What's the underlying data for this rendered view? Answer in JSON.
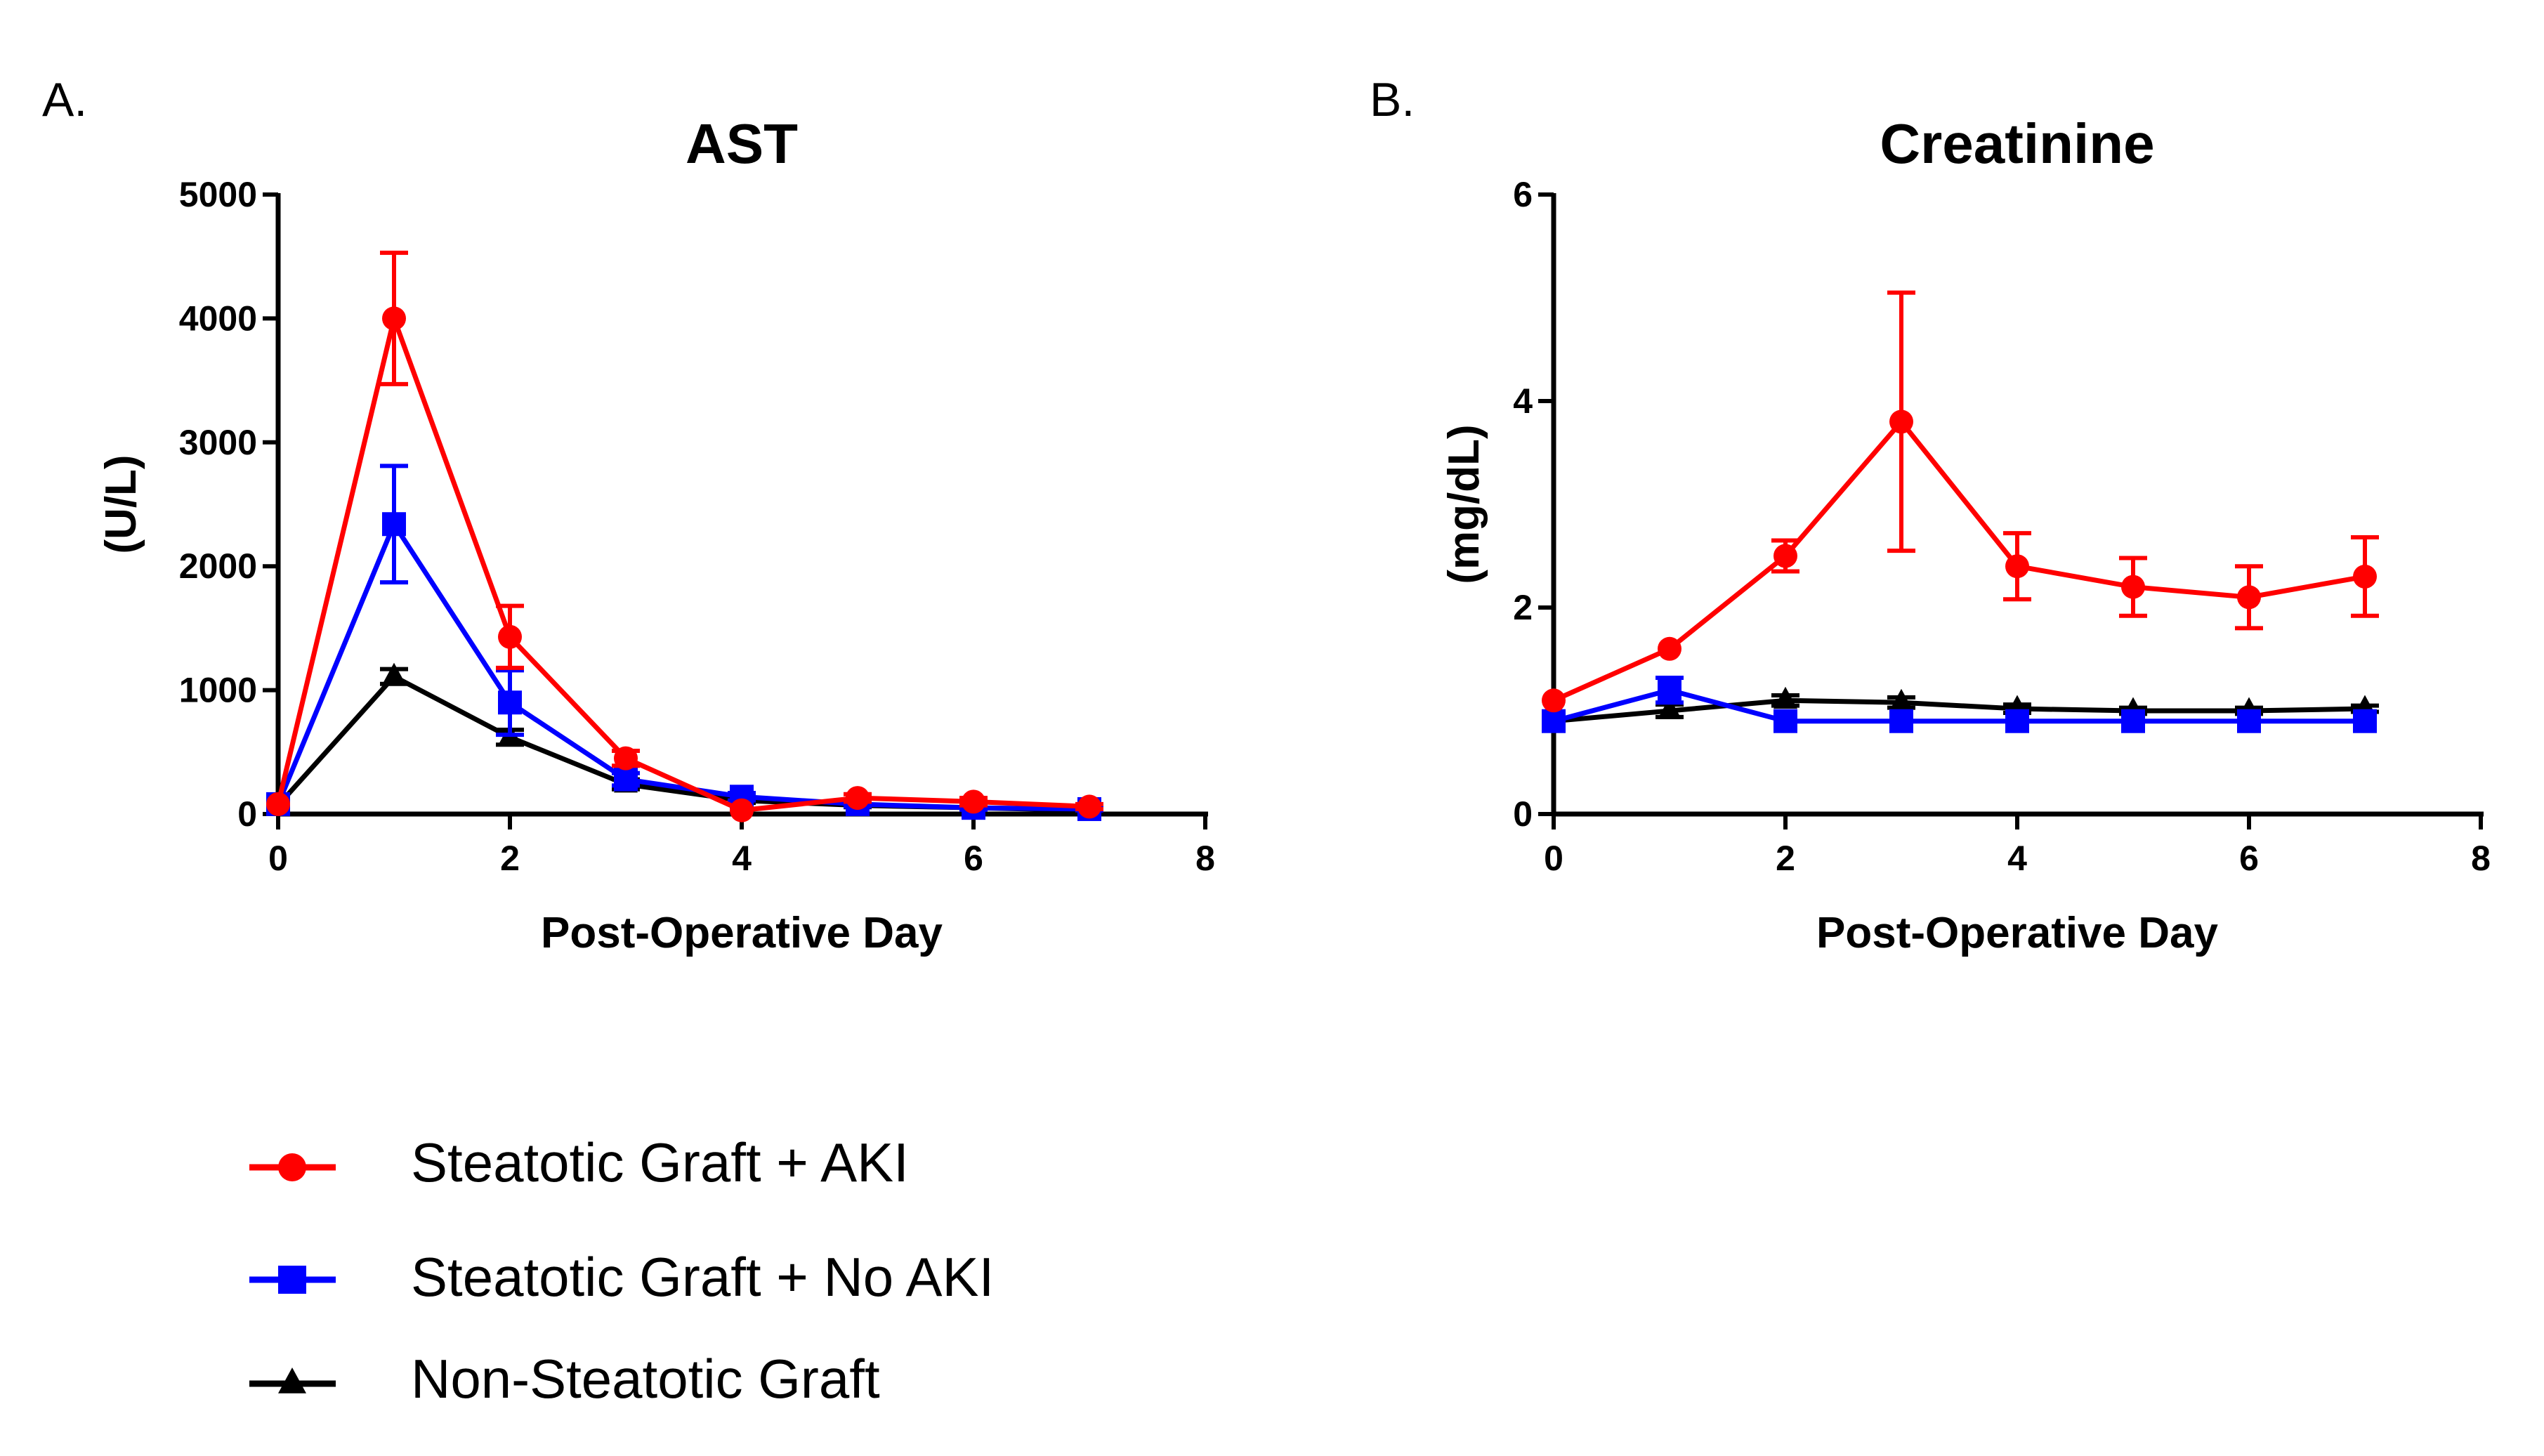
{
  "panels": [
    {
      "letter": "A."
    },
    {
      "letter": "B."
    }
  ],
  "series_style": [
    {
      "name": "Steatotic Graft + AKI",
      "color": "#ff0000",
      "marker": "circle"
    },
    {
      "name": "Steatotic Graft + No AKI",
      "color": "#0000ff",
      "marker": "square"
    },
    {
      "name": "Non-Steatotic Graft",
      "color": "#000000",
      "marker": "triangle"
    }
  ],
  "legend": {
    "items": [
      "Steatotic Graft + AKI",
      "Steatotic Graft + No AKI",
      "Non-Steatotic Graft"
    ]
  },
  "chart_data": [
    {
      "type": "line",
      "title": "AST",
      "xlabel": "Post-Operative Day",
      "ylabel": "(U/L)",
      "xlim": [
        0,
        8
      ],
      "ylim": [
        0,
        5000
      ],
      "xticks": [
        0,
        2,
        4,
        6,
        8
      ],
      "yticks": [
        0,
        1000,
        2000,
        3000,
        4000,
        5000
      ],
      "xtick_labels": [
        "0",
        "2",
        "4",
        "6",
        "8"
      ],
      "ytick_labels": [
        "0",
        "1000",
        "2000",
        "3000",
        "4000",
        "5000"
      ],
      "series": [
        {
          "name": "Steatotic Graft + AKI",
          "x": [
            0,
            1,
            2,
            3,
            4,
            5,
            6,
            7
          ],
          "y": [
            80,
            4000,
            1430,
            450,
            30,
            130,
            100,
            60
          ],
          "err": [
            0,
            530,
            250,
            60,
            0,
            30,
            30,
            20
          ]
        },
        {
          "name": "Steatotic Graft + No AKI",
          "x": [
            0,
            1,
            2,
            3,
            4,
            5,
            6,
            7
          ],
          "y": [
            80,
            2340,
            900,
            280,
            140,
            80,
            50,
            40
          ],
          "err": [
            0,
            470,
            260,
            50,
            30,
            20,
            15,
            10
          ]
        },
        {
          "name": "Non-Steatotic Graft",
          "x": [
            0,
            1,
            2,
            3,
            4,
            5,
            6,
            7
          ],
          "y": [
            70,
            1110,
            620,
            240,
            110,
            70,
            50,
            30
          ],
          "err": [
            0,
            60,
            60,
            40,
            20,
            15,
            10,
            10
          ]
        }
      ]
    },
    {
      "type": "line",
      "title": "Creatinine",
      "xlabel": "Post-Operative Day",
      "ylabel": "(mg/dL)",
      "xlim": [
        0,
        8
      ],
      "ylim": [
        0,
        6
      ],
      "xticks": [
        0,
        2,
        4,
        6,
        8
      ],
      "yticks": [
        0,
        2,
        4,
        6
      ],
      "xtick_labels": [
        "0",
        "2",
        "4",
        "6",
        "8"
      ],
      "ytick_labels": [
        "0",
        "2",
        "4",
        "6"
      ],
      "series": [
        {
          "name": "Steatotic Graft + AKI",
          "x": [
            0,
            1,
            2,
            3,
            4,
            5,
            6,
            7
          ],
          "y": [
            1.1,
            1.6,
            2.5,
            3.8,
            2.4,
            2.2,
            2.1,
            2.3
          ],
          "err": [
            0,
            0,
            0.15,
            1.25,
            0.32,
            0.28,
            0.3,
            0.38
          ]
        },
        {
          "name": "Steatotic Graft + No AKI",
          "x": [
            0,
            1,
            2,
            3,
            4,
            5,
            6,
            7
          ],
          "y": [
            0.9,
            1.2,
            0.9,
            0.9,
            0.9,
            0.9,
            0.9,
            0.9
          ],
          "err": [
            0,
            0.12,
            0,
            0,
            0,
            0,
            0,
            0
          ]
        },
        {
          "name": "Non-Steatotic Graft",
          "x": [
            0,
            1,
            2,
            3,
            4,
            5,
            6,
            7
          ],
          "y": [
            0.9,
            1.0,
            1.1,
            1.08,
            1.02,
            1.0,
            1.0,
            1.02
          ],
          "err": [
            0,
            0.06,
            0.05,
            0.05,
            0.04,
            0.03,
            0.03,
            0.03
          ]
        }
      ]
    }
  ]
}
